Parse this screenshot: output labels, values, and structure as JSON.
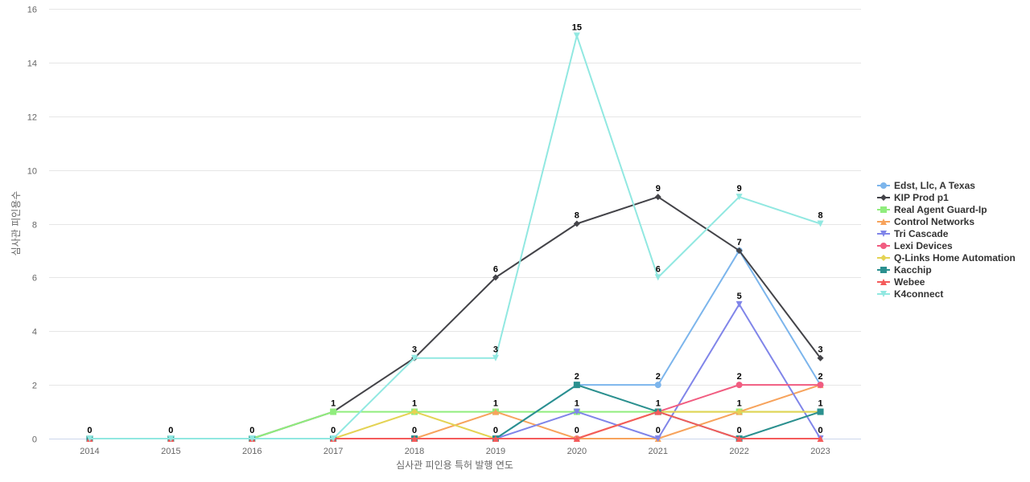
{
  "chart_data": {
    "type": "line",
    "title": "",
    "xlabel": "심사관 피인용 특허 발행 연도",
    "ylabel": "심사관 피인용수",
    "x": [
      "2014",
      "2015",
      "2016",
      "2017",
      "2018",
      "2019",
      "2020",
      "2021",
      "2022",
      "2023"
    ],
    "ylim": [
      0,
      16
    ],
    "yticks": [
      0,
      2,
      4,
      6,
      8,
      10,
      12,
      14,
      16
    ],
    "grid": true,
    "legend_position": "right",
    "series": [
      {
        "name": "Edst, Llc, A Texas",
        "color": "#7cb5ec",
        "marker": "circle",
        "values": [
          0,
          0,
          0,
          0,
          0,
          0,
          2,
          2,
          7,
          2
        ]
      },
      {
        "name": "KIP Prod p1",
        "color": "#434348",
        "marker": "diamond",
        "values": [
          0,
          0,
          0,
          1,
          3,
          6,
          8,
          9,
          7,
          3
        ]
      },
      {
        "name": "Real Agent Guard-Ip",
        "color": "#90ed7d",
        "marker": "square",
        "values": [
          0,
          0,
          0,
          1,
          1,
          1,
          1,
          1,
          1,
          1
        ]
      },
      {
        "name": "Control Networks",
        "color": "#f7a35c",
        "marker": "triangle",
        "values": [
          0,
          0,
          0,
          0,
          0,
          1,
          0,
          0,
          1,
          2
        ]
      },
      {
        "name": "Tri Cascade",
        "color": "#8085e9",
        "marker": "triangle-down",
        "values": [
          0,
          0,
          0,
          0,
          0,
          0,
          1,
          0,
          5,
          0
        ]
      },
      {
        "name": "Lexi Devices",
        "color": "#f15c80",
        "marker": "circle",
        "values": [
          0,
          0,
          0,
          0,
          0,
          0,
          0,
          1,
          2,
          2
        ]
      },
      {
        "name": "Q-Links Home Automation",
        "color": "#e4d354",
        "marker": "diamond",
        "values": [
          0,
          0,
          0,
          0,
          1,
          0,
          0,
          1,
          1,
          1
        ]
      },
      {
        "name": "Kacchip",
        "color": "#2b908f",
        "marker": "square",
        "values": [
          0,
          0,
          0,
          0,
          0,
          0,
          2,
          1,
          0,
          1
        ]
      },
      {
        "name": "Webee",
        "color": "#f45b5b",
        "marker": "triangle",
        "values": [
          0,
          0,
          0,
          0,
          0,
          0,
          0,
          1,
          0,
          0
        ]
      },
      {
        "name": "K4connect",
        "color": "#91e8e1",
        "marker": "triangle-down",
        "values": [
          0,
          0,
          0,
          0,
          3,
          3,
          15,
          6,
          9,
          8
        ]
      }
    ],
    "data_labels": [
      {
        "x": "2014",
        "text": "0",
        "value": 0
      },
      {
        "x": "2015",
        "text": "0",
        "value": 0
      },
      {
        "x": "2016",
        "text": "0",
        "value": 0
      },
      {
        "x": "2017",
        "text": "1",
        "value": 1
      },
      {
        "x": "2017",
        "text": "0",
        "value": 0
      },
      {
        "x": "2018",
        "text": "3",
        "value": 3
      },
      {
        "x": "2018",
        "text": "1",
        "value": 1
      },
      {
        "x": "2018",
        "text": "0",
        "value": 0
      },
      {
        "x": "2019",
        "text": "6",
        "value": 6
      },
      {
        "x": "2019",
        "text": "3",
        "value": 3
      },
      {
        "x": "2019",
        "text": "1",
        "value": 1
      },
      {
        "x": "2019",
        "text": "0",
        "value": 0
      },
      {
        "x": "2020",
        "text": "15",
        "value": 15
      },
      {
        "x": "2020",
        "text": "8",
        "value": 8
      },
      {
        "x": "2020",
        "text": "2",
        "value": 2
      },
      {
        "x": "2020",
        "text": "1",
        "value": 1
      },
      {
        "x": "2020",
        "text": "0",
        "value": 0
      },
      {
        "x": "2021",
        "text": "9",
        "value": 9
      },
      {
        "x": "2021",
        "text": "6",
        "value": 6
      },
      {
        "x": "2021",
        "text": "2",
        "value": 2
      },
      {
        "x": "2021",
        "text": "1",
        "value": 1
      },
      {
        "x": "2021",
        "text": "0",
        "value": 0
      },
      {
        "x": "2022",
        "text": "9",
        "value": 9
      },
      {
        "x": "2022",
        "text": "7",
        "value": 7
      },
      {
        "x": "2022",
        "text": "5",
        "value": 5
      },
      {
        "x": "2022",
        "text": "2",
        "value": 2
      },
      {
        "x": "2022",
        "text": "1",
        "value": 1
      },
      {
        "x": "2022",
        "text": "0",
        "value": 0
      },
      {
        "x": "2023",
        "text": "8",
        "value": 8
      },
      {
        "x": "2023",
        "text": "3",
        "value": 3
      },
      {
        "x": "2023",
        "text": "2",
        "value": 2
      },
      {
        "x": "2023",
        "text": "1",
        "value": 1
      },
      {
        "x": "2023",
        "text": "0",
        "value": 0
      }
    ]
  }
}
